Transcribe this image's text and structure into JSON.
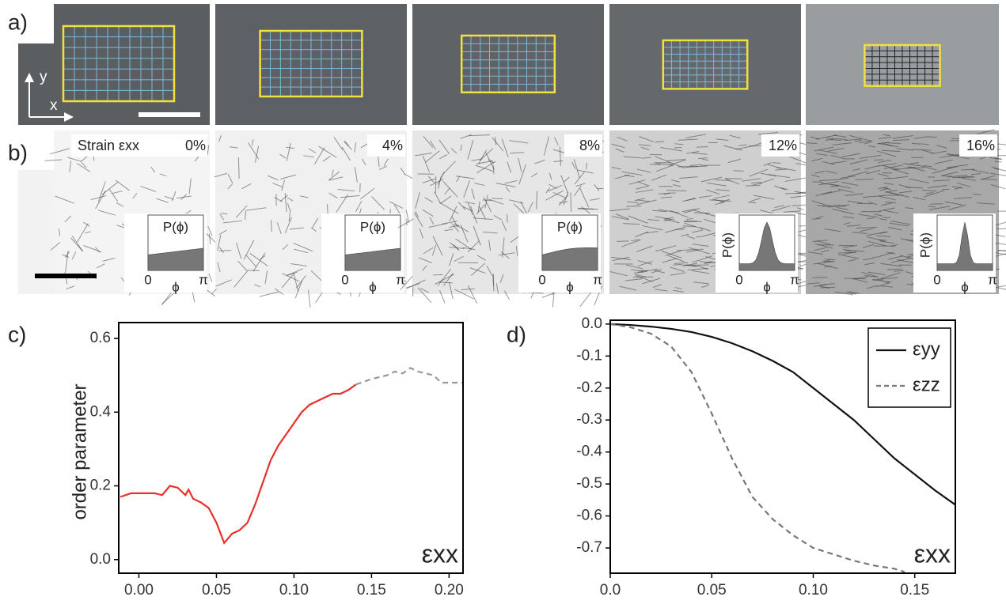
{
  "panel_labels": [
    "a)",
    "b)",
    "c)",
    "d)"
  ],
  "axes_hint": {
    "x": "x",
    "y": "y"
  },
  "strain_panel": {
    "prefix": "Strain εxx",
    "strains": [
      "0%",
      "4%",
      "8%",
      "12%",
      "16%"
    ]
  },
  "inset": {
    "y_label": "P(ϕ)",
    "x_label": "ϕ",
    "x_start": "0",
    "x_end": "π"
  },
  "chart_data": [
    {
      "type": "line",
      "y_label": "order parameter",
      "x_label": "εxx",
      "xlim": [
        -0.013,
        0.209
      ],
      "ylim": [
        -0.037,
        0.643
      ],
      "xticks": [
        {
          "value": 0,
          "label": "0.00"
        },
        0.05,
        {
          "value": 0.1,
          "label": "0.10"
        },
        0.15,
        {
          "value": 0.2,
          "label": "0.20"
        }
      ],
      "yticks": [
        {
          "value": 0,
          "label": "0.0"
        },
        0.2,
        0.4,
        0.6
      ],
      "series": [
        {
          "color": "#e8302a",
          "dash": false,
          "x": [
            -0.012,
            -0.005,
            0.0,
            0.01,
            0.015,
            0.02,
            0.025,
            0.03,
            0.032,
            0.035,
            0.04,
            0.045,
            0.05,
            0.055,
            0.06,
            0.065,
            0.07,
            0.075,
            0.08,
            0.085,
            0.09,
            0.095,
            0.1,
            0.105,
            0.11,
            0.115,
            0.12,
            0.125,
            0.13,
            0.135,
            0.14
          ],
          "values": [
            0.17,
            0.18,
            0.18,
            0.18,
            0.175,
            0.2,
            0.195,
            0.175,
            0.19,
            0.165,
            0.155,
            0.14,
            0.1,
            0.045,
            0.07,
            0.08,
            0.1,
            0.15,
            0.21,
            0.27,
            0.31,
            0.34,
            0.37,
            0.4,
            0.42,
            0.43,
            0.44,
            0.45,
            0.45,
            0.46,
            0.475
          ]
        },
        {
          "color": "#999999",
          "dash": true,
          "x": [
            0.14,
            0.15,
            0.16,
            0.165,
            0.17,
            0.175,
            0.18,
            0.19,
            0.195,
            0.2,
            0.209
          ],
          "values": [
            0.475,
            0.49,
            0.5,
            0.51,
            0.505,
            0.52,
            0.51,
            0.5,
            0.48,
            0.48,
            0.48
          ]
        }
      ]
    },
    {
      "type": "line",
      "x_label": "εxx",
      "legend": "top-right",
      "xlim": [
        0,
        0.17
      ],
      "ylim": [
        -0.779,
        0.012
      ],
      "xticks": [
        {
          "value": 0,
          "label": "0.0"
        },
        0.05,
        {
          "value": 0.1,
          "label": "0.10"
        },
        0.15
      ],
      "yticks": [
        {
          "value": 0,
          "label": "0.0"
        },
        -0.1,
        -0.2,
        -0.3,
        -0.4,
        -0.5,
        -0.6,
        -0.7
      ],
      "series": [
        {
          "name": "εyy",
          "color": "#111111",
          "dash": false,
          "x": [
            0,
            0.01,
            0.02,
            0.03,
            0.04,
            0.05,
            0.06,
            0.07,
            0.08,
            0.09,
            0.1,
            0.11,
            0.12,
            0.13,
            0.14,
            0.15,
            0.16,
            0.17
          ],
          "values": [
            0,
            -0.003,
            -0.008,
            -0.015,
            -0.025,
            -0.04,
            -0.06,
            -0.085,
            -0.115,
            -0.15,
            -0.2,
            -0.25,
            -0.3,
            -0.36,
            -0.42,
            -0.47,
            -0.52,
            -0.565
          ]
        },
        {
          "name": "εzz",
          "color": "#777777",
          "dash": true,
          "x": [
            0,
            0.01,
            0.02,
            0.03,
            0.04,
            0.05,
            0.06,
            0.07,
            0.08,
            0.09,
            0.1,
            0.11,
            0.12,
            0.13,
            0.14,
            0.145
          ],
          "values": [
            0,
            -0.01,
            -0.03,
            -0.07,
            -0.15,
            -0.28,
            -0.42,
            -0.54,
            -0.61,
            -0.66,
            -0.7,
            -0.72,
            -0.74,
            -0.755,
            -0.765,
            -0.775
          ]
        }
      ]
    }
  ]
}
